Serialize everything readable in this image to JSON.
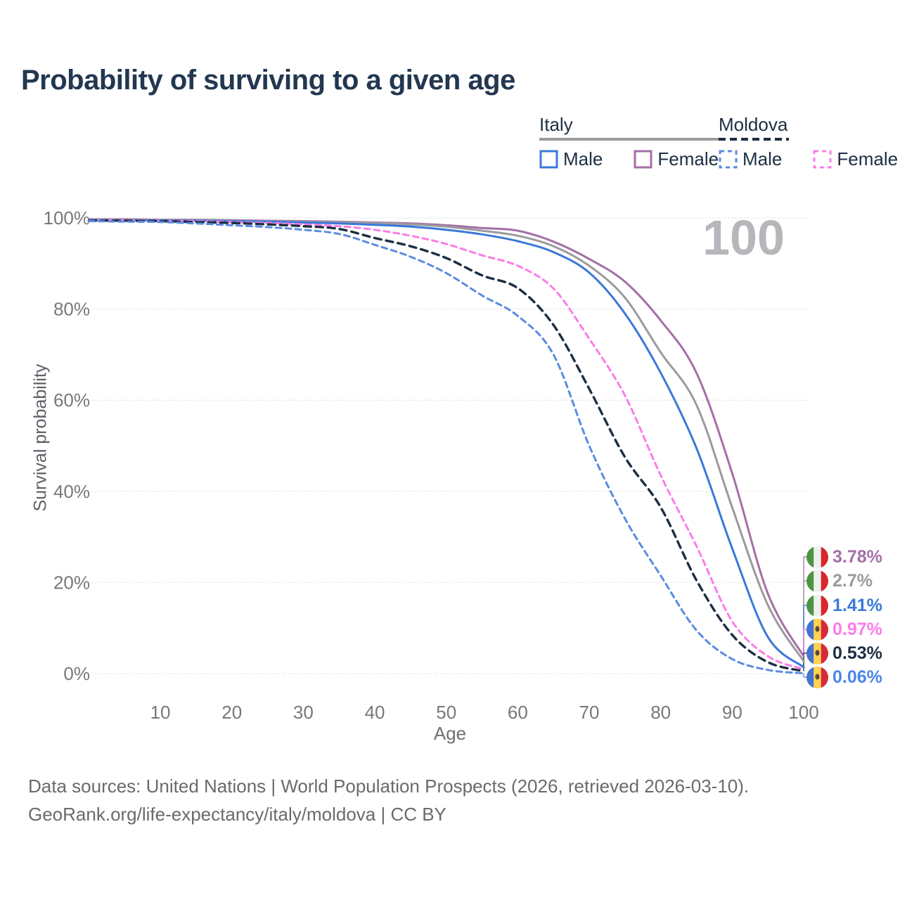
{
  "title": "Probability of surviving to a given age",
  "watermark": "100",
  "legend": {
    "italy": {
      "label": "Italy",
      "male": "Male",
      "female": "Female"
    },
    "moldova": {
      "label": "Moldova",
      "male": "Male",
      "female": "Female"
    }
  },
  "axes": {
    "x": {
      "label": "Age",
      "ticks": [
        10,
        20,
        30,
        40,
        50,
        60,
        70,
        80,
        90,
        100
      ]
    },
    "y": {
      "label": "Survival probability",
      "ticks": [
        0,
        20,
        40,
        60,
        80,
        100
      ],
      "tick_suffix": "%"
    }
  },
  "end_labels": [
    {
      "value": "3.78%",
      "color": "#a46fa6",
      "flag": "italy"
    },
    {
      "value": "2.7%",
      "color": "#9a9a9e",
      "flag": "italy"
    },
    {
      "value": "1.41%",
      "color": "#3b78d8",
      "flag": "italy"
    },
    {
      "value": "0.97%",
      "color": "#fb7de8",
      "flag": "moldova"
    },
    {
      "value": "0.53%",
      "color": "#1d2e42",
      "flag": "moldova"
    },
    {
      "value": "0.06%",
      "color": "#4a86e8",
      "flag": "moldova"
    }
  ],
  "footer": {
    "line1": "Data sources: United Nations | World Population Prospects (2026, retrieved 2026-03-10).",
    "line2": "GeoRank.org/life-expectancy/italy/moldova | CC BY"
  },
  "colors": {
    "title_text": "#233750",
    "grid": "#dcdde0",
    "tick_text": "#77787a",
    "italy_underline": "#9b9b9e",
    "moldova_underline": "#1d2e42"
  },
  "chart_data": {
    "type": "line",
    "title": "Probability of surviving to a given age",
    "xlabel": "Age",
    "ylabel": "Survival probability",
    "xlim": [
      0,
      100
    ],
    "ylim": [
      0,
      100
    ],
    "grid": true,
    "legend_position": "top-right",
    "x": [
      0,
      5,
      10,
      15,
      20,
      25,
      30,
      35,
      40,
      45,
      50,
      55,
      60,
      65,
      70,
      75,
      80,
      85,
      90,
      95,
      100
    ],
    "series": [
      {
        "name": "Italy Female",
        "country": "italy",
        "style": "solid",
        "color": "#a46fa6",
        "values": [
          99.7,
          99.7,
          99.6,
          99.6,
          99.5,
          99.4,
          99.3,
          99.2,
          99.0,
          98.8,
          98.4,
          97.8,
          97.2,
          94.8,
          91.0,
          86.0,
          77.5,
          66.0,
          44.0,
          17.5,
          3.78
        ],
        "end_label": "3.78%"
      },
      {
        "name": "Italy Overall",
        "country": "italy",
        "style": "solid",
        "color": "#9b9b9e",
        "values": [
          99.7,
          99.6,
          99.6,
          99.5,
          99.4,
          99.3,
          99.2,
          99.1,
          98.9,
          98.6,
          98.1,
          97.2,
          96.1,
          93.8,
          89.5,
          82.5,
          70.5,
          59.0,
          36.5,
          15.0,
          2.7
        ],
        "end_label": "2.7%"
      },
      {
        "name": "Italy Male",
        "country": "italy",
        "style": "solid",
        "color": "#3b78d8",
        "values": [
          99.6,
          99.5,
          99.5,
          99.4,
          99.3,
          99.2,
          99.0,
          98.8,
          98.5,
          98.1,
          97.4,
          96.4,
          94.9,
          92.5,
          88.0,
          79.0,
          66.0,
          49.5,
          27.5,
          8.0,
          1.41
        ],
        "end_label": "1.41%"
      },
      {
        "name": "Moldova Female",
        "country": "moldova",
        "style": "dashed",
        "color": "#fb7de8",
        "values": [
          99.5,
          99.5,
          99.4,
          99.3,
          99.1,
          98.9,
          98.6,
          98.2,
          97.4,
          96.1,
          94.3,
          91.8,
          89.5,
          84.5,
          73.5,
          61.0,
          43.5,
          28.0,
          11.5,
          3.8,
          0.97
        ],
        "end_label": "0.97%"
      },
      {
        "name": "Moldova Overall",
        "country": "moldova",
        "style": "dashed",
        "color": "#1d2e42",
        "values": [
          99.4,
          99.4,
          99.3,
          99.1,
          98.9,
          98.6,
          98.2,
          97.6,
          95.6,
          93.8,
          91.2,
          87.4,
          84.6,
          76.5,
          62.5,
          47.5,
          36.5,
          20.5,
          8.5,
          2.5,
          0.53
        ],
        "end_label": "0.53%"
      },
      {
        "name": "Moldova Male",
        "country": "moldova",
        "style": "dashed",
        "color": "#5b8ce0",
        "values": [
          99.3,
          99.2,
          99.1,
          98.8,
          98.4,
          98.0,
          97.4,
          96.5,
          94.1,
          91.5,
          87.9,
          83.0,
          78.5,
          70.0,
          50.0,
          34.0,
          21.5,
          9.5,
          3.2,
          0.8,
          0.06
        ],
        "end_label": "0.06%"
      }
    ]
  }
}
